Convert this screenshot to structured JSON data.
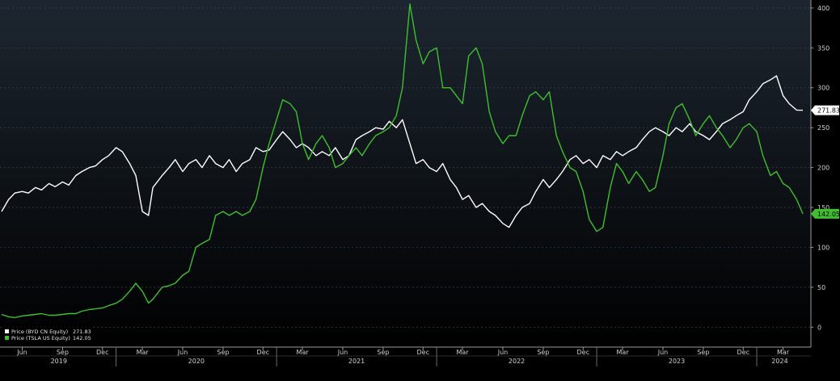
{
  "chart_data": {
    "type": "line",
    "title": "",
    "xlabel": "",
    "ylabel": "",
    "ylim": [
      -25,
      410
    ],
    "y_axis_side": "right",
    "grid": "horizontal dashed",
    "yticks": [
      0,
      50,
      100,
      150,
      200,
      250,
      300,
      350,
      400
    ],
    "x_range": [
      "2019-04-15",
      "2024-04-15"
    ],
    "month_ticks": [
      {
        "label": "Jun",
        "date": "2019-06-01"
      },
      {
        "label": "Sep",
        "date": "2019-09-01"
      },
      {
        "label": "Dec",
        "date": "2019-12-01"
      },
      {
        "label": "Mar",
        "date": "2020-03-01"
      },
      {
        "label": "Jun",
        "date": "2020-06-01"
      },
      {
        "label": "Sep",
        "date": "2020-09-01"
      },
      {
        "label": "Dec",
        "date": "2020-12-01"
      },
      {
        "label": "Mar",
        "date": "2021-03-01"
      },
      {
        "label": "Jun",
        "date": "2021-06-01"
      },
      {
        "label": "Sep",
        "date": "2021-09-01"
      },
      {
        "label": "Dec",
        "date": "2021-12-01"
      },
      {
        "label": "Mar",
        "date": "2022-03-01"
      },
      {
        "label": "Jun",
        "date": "2022-06-01"
      },
      {
        "label": "Sep",
        "date": "2022-09-01"
      },
      {
        "label": "Dec",
        "date": "2022-12-01"
      },
      {
        "label": "Mar",
        "date": "2023-03-01"
      },
      {
        "label": "Jun",
        "date": "2023-06-01"
      },
      {
        "label": "Sep",
        "date": "2023-09-01"
      },
      {
        "label": "Dec",
        "date": "2023-12-01"
      },
      {
        "label": "Mar",
        "date": "2024-03-01"
      }
    ],
    "year_ticks": [
      {
        "label": "2019",
        "date": "2019-04-15",
        "end": "2020-01-01"
      },
      {
        "label": "2020",
        "date": "2020-01-01",
        "end": "2021-01-01"
      },
      {
        "label": "2021",
        "date": "2021-01-01",
        "end": "2022-01-01"
      },
      {
        "label": "2022",
        "date": "2022-01-01",
        "end": "2023-01-01"
      },
      {
        "label": "2023",
        "date": "2023-01-01",
        "end": "2024-01-01"
      },
      {
        "label": "2024",
        "date": "2024-01-01",
        "end": "2024-04-15"
      }
    ],
    "legend_position": "bottom-left",
    "series": [
      {
        "name": "Price (BYD CN Equity)",
        "color": "#ffffff",
        "last_value": "271.83",
        "points": [
          [
            "2019-04-15",
            145
          ],
          [
            "2019-05-01",
            160
          ],
          [
            "2019-05-15",
            168
          ],
          [
            "2019-06-01",
            170
          ],
          [
            "2019-06-15",
            168
          ],
          [
            "2019-07-01",
            175
          ],
          [
            "2019-07-15",
            172
          ],
          [
            "2019-08-01",
            180
          ],
          [
            "2019-08-15",
            176
          ],
          [
            "2019-09-01",
            182
          ],
          [
            "2019-09-15",
            178
          ],
          [
            "2019-10-01",
            190
          ],
          [
            "2019-10-15",
            195
          ],
          [
            "2019-11-01",
            200
          ],
          [
            "2019-11-15",
            202
          ],
          [
            "2019-12-01",
            210
          ],
          [
            "2019-12-15",
            215
          ],
          [
            "2020-01-01",
            225
          ],
          [
            "2020-01-15",
            220
          ],
          [
            "2020-02-01",
            205
          ],
          [
            "2020-02-15",
            190
          ],
          [
            "2020-03-01",
            145
          ],
          [
            "2020-03-15",
            140
          ],
          [
            "2020-03-25",
            175
          ],
          [
            "2020-04-15",
            190
          ],
          [
            "2020-05-01",
            200
          ],
          [
            "2020-05-15",
            210
          ],
          [
            "2020-06-01",
            195
          ],
          [
            "2020-06-15",
            205
          ],
          [
            "2020-07-01",
            210
          ],
          [
            "2020-07-15",
            200
          ],
          [
            "2020-08-01",
            215
          ],
          [
            "2020-08-15",
            205
          ],
          [
            "2020-09-01",
            200
          ],
          [
            "2020-09-15",
            210
          ],
          [
            "2020-10-01",
            195
          ],
          [
            "2020-10-15",
            205
          ],
          [
            "2020-11-01",
            210
          ],
          [
            "2020-11-15",
            225
          ],
          [
            "2020-12-01",
            220
          ],
          [
            "2020-12-15",
            222
          ],
          [
            "2021-01-01",
            235
          ],
          [
            "2021-01-15",
            245
          ],
          [
            "2021-02-01",
            235
          ],
          [
            "2021-02-15",
            225
          ],
          [
            "2021-03-01",
            230
          ],
          [
            "2021-03-15",
            225
          ],
          [
            "2021-04-01",
            215
          ],
          [
            "2021-04-15",
            220
          ],
          [
            "2021-05-01",
            215
          ],
          [
            "2021-05-15",
            225
          ],
          [
            "2021-06-01",
            210
          ],
          [
            "2021-06-15",
            215
          ],
          [
            "2021-07-01",
            235
          ],
          [
            "2021-07-15",
            240
          ],
          [
            "2021-08-01",
            245
          ],
          [
            "2021-08-15",
            250
          ],
          [
            "2021-09-01",
            248
          ],
          [
            "2021-09-15",
            258
          ],
          [
            "2021-10-01",
            250
          ],
          [
            "2021-10-15",
            260
          ],
          [
            "2021-11-01",
            230
          ],
          [
            "2021-11-15",
            205
          ],
          [
            "2021-12-01",
            210
          ],
          [
            "2021-12-15",
            200
          ],
          [
            "2022-01-01",
            195
          ],
          [
            "2022-01-15",
            205
          ],
          [
            "2022-02-01",
            185
          ],
          [
            "2022-02-15",
            175
          ],
          [
            "2022-03-01",
            160
          ],
          [
            "2022-03-15",
            165
          ],
          [
            "2022-04-01",
            150
          ],
          [
            "2022-04-15",
            155
          ],
          [
            "2022-05-01",
            145
          ],
          [
            "2022-05-15",
            140
          ],
          [
            "2022-06-01",
            130
          ],
          [
            "2022-06-15",
            125
          ],
          [
            "2022-07-01",
            140
          ],
          [
            "2022-07-15",
            150
          ],
          [
            "2022-08-01",
            155
          ],
          [
            "2022-08-15",
            170
          ],
          [
            "2022-09-01",
            185
          ],
          [
            "2022-09-15",
            175
          ],
          [
            "2022-10-01",
            185
          ],
          [
            "2022-10-15",
            195
          ],
          [
            "2022-11-01",
            210
          ],
          [
            "2022-11-15",
            215
          ],
          [
            "2022-12-01",
            205
          ],
          [
            "2022-12-15",
            210
          ],
          [
            "2023-01-01",
            200
          ],
          [
            "2023-01-15",
            215
          ],
          [
            "2023-02-01",
            210
          ],
          [
            "2023-02-15",
            220
          ],
          [
            "2023-03-01",
            215
          ],
          [
            "2023-03-15",
            220
          ],
          [
            "2023-04-01",
            225
          ],
          [
            "2023-04-15",
            235
          ],
          [
            "2023-05-01",
            245
          ],
          [
            "2023-05-15",
            250
          ],
          [
            "2023-06-01",
            245
          ],
          [
            "2023-06-15",
            240
          ],
          [
            "2023-07-01",
            250
          ],
          [
            "2023-07-15",
            245
          ],
          [
            "2023-08-01",
            255
          ],
          [
            "2023-08-15",
            245
          ],
          [
            "2023-09-01",
            240
          ],
          [
            "2023-09-15",
            235
          ],
          [
            "2023-10-01",
            245
          ],
          [
            "2023-10-15",
            255
          ],
          [
            "2023-11-01",
            260
          ],
          [
            "2023-11-15",
            265
          ],
          [
            "2023-12-01",
            270
          ],
          [
            "2023-12-15",
            285
          ],
          [
            "2024-01-01",
            295
          ],
          [
            "2024-01-15",
            305
          ],
          [
            "2024-02-01",
            310
          ],
          [
            "2024-02-15",
            315
          ],
          [
            "2024-03-01",
            290
          ],
          [
            "2024-03-15",
            280
          ],
          [
            "2024-04-01",
            272
          ],
          [
            "2024-04-15",
            271.83
          ]
        ]
      },
      {
        "name": "Price (TSLA US Equity)",
        "color": "#3fbf2f",
        "last_value": "142.05",
        "points": [
          [
            "2019-04-15",
            16
          ],
          [
            "2019-05-01",
            13
          ],
          [
            "2019-05-15",
            12
          ],
          [
            "2019-06-01",
            14
          ],
          [
            "2019-06-15",
            15
          ],
          [
            "2019-07-01",
            16
          ],
          [
            "2019-07-15",
            17
          ],
          [
            "2019-08-01",
            15
          ],
          [
            "2019-08-15",
            15
          ],
          [
            "2019-09-01",
            16
          ],
          [
            "2019-09-15",
            17
          ],
          [
            "2019-10-01",
            17
          ],
          [
            "2019-10-15",
            20
          ],
          [
            "2019-11-01",
            22
          ],
          [
            "2019-11-15",
            23
          ],
          [
            "2019-12-01",
            24
          ],
          [
            "2019-12-15",
            27
          ],
          [
            "2020-01-01",
            30
          ],
          [
            "2020-01-15",
            35
          ],
          [
            "2020-02-01",
            45
          ],
          [
            "2020-02-15",
            55
          ],
          [
            "2020-03-01",
            45
          ],
          [
            "2020-03-15",
            30
          ],
          [
            "2020-03-25",
            35
          ],
          [
            "2020-04-15",
            50
          ],
          [
            "2020-05-01",
            52
          ],
          [
            "2020-05-15",
            55
          ],
          [
            "2020-06-01",
            65
          ],
          [
            "2020-06-15",
            70
          ],
          [
            "2020-07-01",
            100
          ],
          [
            "2020-07-15",
            105
          ],
          [
            "2020-08-01",
            110
          ],
          [
            "2020-08-15",
            140
          ],
          [
            "2020-09-01",
            145
          ],
          [
            "2020-09-15",
            140
          ],
          [
            "2020-10-01",
            145
          ],
          [
            "2020-10-15",
            140
          ],
          [
            "2020-11-01",
            145
          ],
          [
            "2020-11-15",
            160
          ],
          [
            "2020-12-01",
            200
          ],
          [
            "2020-12-15",
            230
          ],
          [
            "2021-01-01",
            260
          ],
          [
            "2021-01-15",
            285
          ],
          [
            "2021-02-01",
            280
          ],
          [
            "2021-02-15",
            270
          ],
          [
            "2021-03-01",
            230
          ],
          [
            "2021-03-15",
            210
          ],
          [
            "2021-04-01",
            230
          ],
          [
            "2021-04-15",
            240
          ],
          [
            "2021-05-01",
            225
          ],
          [
            "2021-05-15",
            200
          ],
          [
            "2021-06-01",
            205
          ],
          [
            "2021-06-15",
            215
          ],
          [
            "2021-07-01",
            225
          ],
          [
            "2021-07-15",
            215
          ],
          [
            "2021-08-01",
            230
          ],
          [
            "2021-08-15",
            240
          ],
          [
            "2021-09-01",
            245
          ],
          [
            "2021-09-15",
            250
          ],
          [
            "2021-10-01",
            265
          ],
          [
            "2021-10-15",
            300
          ],
          [
            "2021-11-01",
            405
          ],
          [
            "2021-11-15",
            360
          ],
          [
            "2021-12-01",
            330
          ],
          [
            "2021-12-15",
            345
          ],
          [
            "2022-01-01",
            350
          ],
          [
            "2022-01-15",
            300
          ],
          [
            "2022-02-01",
            300
          ],
          [
            "2022-02-15",
            290
          ],
          [
            "2022-03-01",
            280
          ],
          [
            "2022-03-15",
            340
          ],
          [
            "2022-04-01",
            350
          ],
          [
            "2022-04-15",
            330
          ],
          [
            "2022-05-01",
            270
          ],
          [
            "2022-05-15",
            245
          ],
          [
            "2022-06-01",
            230
          ],
          [
            "2022-06-15",
            240
          ],
          [
            "2022-07-01",
            240
          ],
          [
            "2022-07-15",
            265
          ],
          [
            "2022-08-01",
            290
          ],
          [
            "2022-08-15",
            295
          ],
          [
            "2022-09-01",
            285
          ],
          [
            "2022-09-15",
            295
          ],
          [
            "2022-10-01",
            240
          ],
          [
            "2022-10-15",
            220
          ],
          [
            "2022-11-01",
            200
          ],
          [
            "2022-11-15",
            195
          ],
          [
            "2022-12-01",
            170
          ],
          [
            "2022-12-15",
            135
          ],
          [
            "2023-01-01",
            120
          ],
          [
            "2023-01-15",
            125
          ],
          [
            "2023-02-01",
            175
          ],
          [
            "2023-02-15",
            205
          ],
          [
            "2023-03-01",
            195
          ],
          [
            "2023-03-15",
            180
          ],
          [
            "2023-04-01",
            195
          ],
          [
            "2023-04-15",
            185
          ],
          [
            "2023-05-01",
            170
          ],
          [
            "2023-05-15",
            175
          ],
          [
            "2023-06-01",
            215
          ],
          [
            "2023-06-15",
            255
          ],
          [
            "2023-07-01",
            275
          ],
          [
            "2023-07-15",
            280
          ],
          [
            "2023-08-01",
            260
          ],
          [
            "2023-08-15",
            240
          ],
          [
            "2023-09-01",
            255
          ],
          [
            "2023-09-15",
            265
          ],
          [
            "2023-10-01",
            250
          ],
          [
            "2023-10-15",
            240
          ],
          [
            "2023-11-01",
            225
          ],
          [
            "2023-11-15",
            235
          ],
          [
            "2023-12-01",
            250
          ],
          [
            "2023-12-15",
            255
          ],
          [
            "2024-01-01",
            245
          ],
          [
            "2024-01-15",
            215
          ],
          [
            "2024-02-01",
            190
          ],
          [
            "2024-02-15",
            195
          ],
          [
            "2024-03-01",
            180
          ],
          [
            "2024-03-15",
            175
          ],
          [
            "2024-04-01",
            160
          ],
          [
            "2024-04-15",
            142.05
          ]
        ]
      }
    ]
  }
}
